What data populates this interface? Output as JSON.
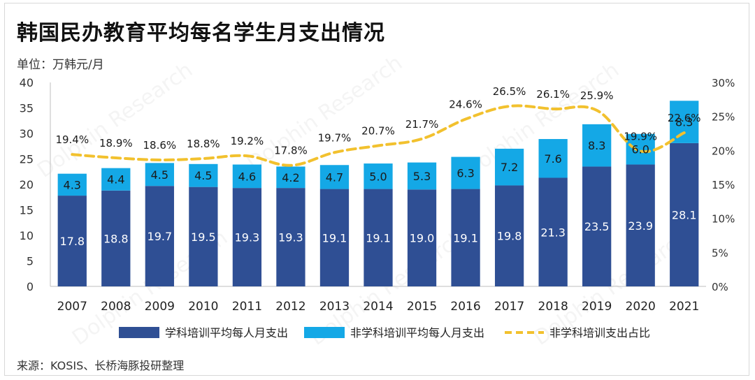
{
  "title": "韩国民办教育平均每名学生月支出情况",
  "unit_label": "单位：万韩元/月",
  "source": "来源：KOSIS、长桥海豚投研整理",
  "watermark": "Dolphin Research",
  "chart_data": {
    "type": "bar",
    "stacked": true,
    "categories": [
      "2007",
      "2008",
      "2009",
      "2010",
      "2011",
      "2012",
      "2013",
      "2014",
      "2015",
      "2016",
      "2017",
      "2018",
      "2019",
      "2020",
      "2021"
    ],
    "series": [
      {
        "name": "学科培训平均每人月支出",
        "type": "bar",
        "axis": "left",
        "color": "#2f4f94",
        "values": [
          17.8,
          18.8,
          19.7,
          19.5,
          19.3,
          19.3,
          19.1,
          19.1,
          19.0,
          19.1,
          19.8,
          21.3,
          23.5,
          23.9,
          28.1
        ],
        "labels": [
          "17.8",
          "18.8",
          "19.7",
          "19.5",
          "19.3",
          "19.3",
          "19.1",
          "19.1",
          "19.0",
          "19.1",
          "19.8",
          "21.3",
          "23.5",
          "23.9",
          "28.1"
        ]
      },
      {
        "name": "非学科培训平均每人月支出",
        "type": "bar",
        "axis": "left",
        "color": "#14a8e6",
        "values": [
          4.3,
          4.4,
          4.5,
          4.5,
          4.6,
          4.2,
          4.7,
          5.0,
          5.3,
          6.3,
          7.2,
          7.6,
          8.3,
          6.0,
          8.3
        ],
        "labels": [
          "4.3",
          "4.4",
          "4.5",
          "4.5",
          "4.6",
          "4.2",
          "4.7",
          "5.0",
          "5.3",
          "6.3",
          "7.2",
          "7.6",
          "8.3",
          "6.0",
          "8.3"
        ]
      },
      {
        "name": "非学科培训支出占比",
        "type": "line",
        "axis": "right",
        "style": "dashed",
        "color": "#f2c12e",
        "values": [
          19.4,
          18.9,
          18.6,
          18.8,
          19.2,
          17.8,
          19.7,
          20.7,
          21.7,
          24.6,
          26.5,
          26.1,
          25.9,
          19.9,
          22.6
        ],
        "labels": [
          "19.4%",
          "18.9%",
          "18.6%",
          "18.8%",
          "19.2%",
          "17.8%",
          "19.7%",
          "20.7%",
          "21.7%",
          "24.6%",
          "26.5%",
          "26.1%",
          "25.9%",
          "19.9%",
          "22.6%"
        ]
      }
    ],
    "y_left": {
      "min": 0,
      "max": 40,
      "ticks": [
        "0",
        "5",
        "10",
        "15",
        "20",
        "25",
        "30",
        "35",
        "40"
      ]
    },
    "y_right": {
      "min": 0,
      "max": 30,
      "ticks": [
        "0%",
        "5%",
        "10%",
        "15%",
        "20%",
        "25%",
        "30%"
      ]
    },
    "legend_position": "bottom",
    "grid": false
  }
}
